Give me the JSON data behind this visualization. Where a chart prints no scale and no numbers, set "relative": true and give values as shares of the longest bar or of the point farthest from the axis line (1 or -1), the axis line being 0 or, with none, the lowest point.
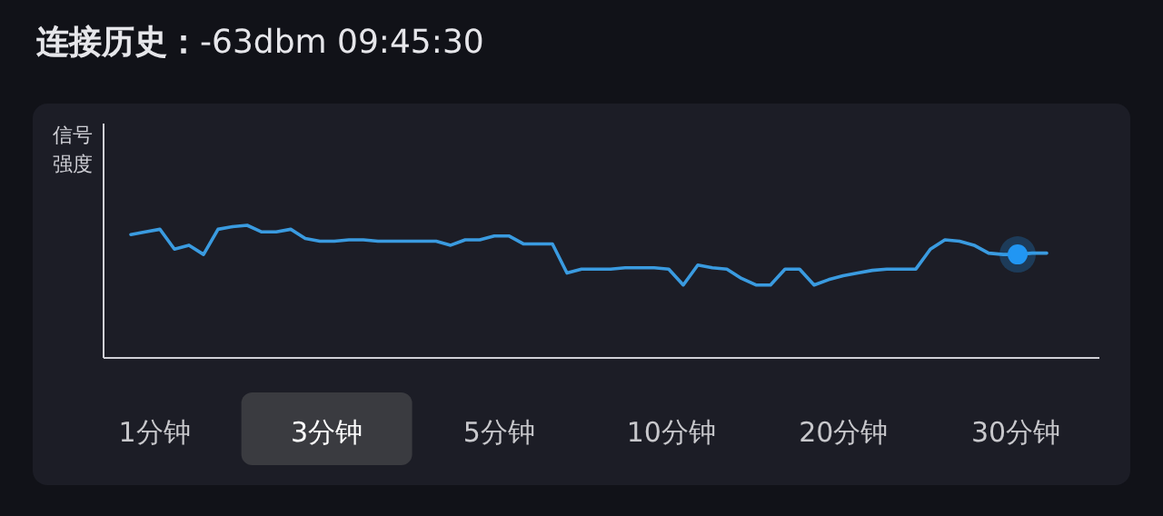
{
  "chart_data": {
    "type": "line",
    "title": "**连接历史：**-63dbm    09:45:30",
    "ylabel": "信号强度",
    "relative": true,
    "categories": [
      null,
      null,
      null,
      null,
      null,
      null,
      null,
      null,
      null,
      null,
      null,
      null,
      null,
      null,
      null,
      null,
      null,
      null,
      null,
      null,
      null,
      null,
      null,
      null,
      null,
      null,
      null,
      null,
      null,
      null,
      null,
      null,
      null,
      null,
      null,
      null,
      null,
      null,
      null,
      null,
      null,
      null,
      null,
      null,
      null,
      null,
      null,
      null,
      null,
      null,
      null,
      null,
      null,
      null,
      null,
      null,
      null,
      null,
      null,
      null,
      null,
      null,
      null,
      null
    ],
    "series": [
      {
        "color": "#3a9be0",
        "values": [
          0.93,
          0.95,
          0.97,
          0.82,
          0.85,
          0.78,
          0.97,
          0.99,
          1.0,
          0.95,
          0.95,
          0.97,
          0.9,
          0.88,
          0.88,
          0.89,
          0.89,
          0.88,
          0.88,
          0.88,
          0.88,
          0.88,
          0.85,
          0.89,
          0.89,
          0.92,
          0.92,
          0.86,
          0.86,
          0.86,
          0.64,
          0.67,
          0.67,
          0.67,
          0.68,
          0.68,
          0.68,
          0.67,
          0.55,
          0.7,
          0.68,
          0.67,
          0.6,
          0.55,
          0.55,
          0.67,
          0.67,
          0.55,
          0.59,
          0.62,
          0.64,
          0.66,
          0.67,
          0.67,
          0.67,
          0.82,
          0.89,
          0.88,
          0.85,
          0.79,
          0.78,
          0.78,
          0.79,
          0.79
        ]
      }
    ],
    "annotations": [
      "1分钟",
      "3分钟",
      "5分钟",
      "10分钟",
      "20分钟",
      "30分钟"
    ]
  }
}
